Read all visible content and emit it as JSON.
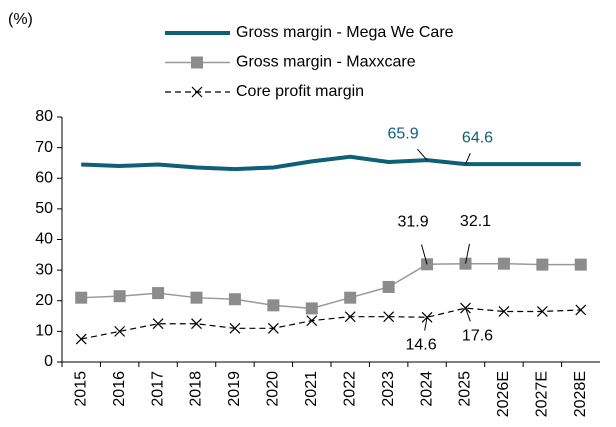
{
  "chart_data": {
    "type": "line",
    "y_label": "(%)",
    "categories": [
      "2015",
      "2016",
      "2017",
      "2018",
      "2019",
      "2020",
      "2021",
      "2022",
      "2023",
      "2024",
      "2025",
      "2026E",
      "2027E",
      "2028E"
    ],
    "series": [
      {
        "name": "Gross margin - Mega We Care",
        "color": "#0e5f78",
        "width": 4,
        "dash": false,
        "marker": "none",
        "values": [
          64.5,
          64.0,
          64.5,
          63.5,
          63.0,
          63.5,
          65.5,
          67.0,
          65.3,
          65.9,
          64.6,
          64.6,
          64.6,
          64.6
        ]
      },
      {
        "name": "Gross margin - Maxxcare",
        "color": "#999999",
        "width": 1.5,
        "dash": false,
        "marker": "square",
        "values": [
          21.0,
          21.5,
          22.5,
          21.0,
          20.5,
          18.5,
          17.5,
          21.0,
          24.5,
          31.9,
          32.1,
          32.1,
          31.8,
          31.8
        ]
      },
      {
        "name": "Core profit margin",
        "color": "#000000",
        "width": 1.2,
        "dash": true,
        "marker": "x",
        "values": [
          7.5,
          10.0,
          12.5,
          12.5,
          11.0,
          11.0,
          13.5,
          14.8,
          14.8,
          14.6,
          17.6,
          16.5,
          16.5,
          17.0
        ]
      }
    ],
    "ylim": [
      0,
      80
    ],
    "yticks": [
      0,
      10,
      20,
      30,
      40,
      50,
      60,
      70,
      80
    ]
  }
}
